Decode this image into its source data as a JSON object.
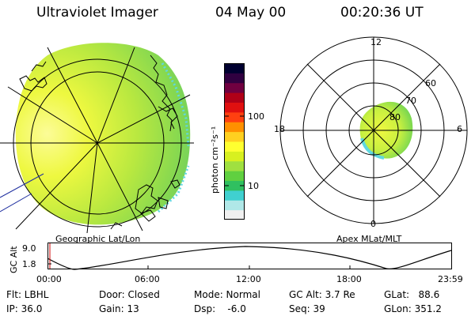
{
  "header": {
    "instrument": "Ultraviolet Imager",
    "date": "04 May 00",
    "time": "00:20:36 UT"
  },
  "geo_panel": {
    "label": "Geographic Lat/Lon"
  },
  "apex_panel": {
    "label": "Apex MLat/MLT",
    "mlt_labels": [
      "12",
      "18",
      "6",
      "0"
    ],
    "mlat_labels": [
      "60",
      "70",
      "80"
    ]
  },
  "colorbar": {
    "unit_label": "photon cm⁻²s⁻¹",
    "ticks": [
      "100",
      "10"
    ],
    "colors": [
      "#f0f0f0",
      "#b0e8e8",
      "#40d0d0",
      "#30c060",
      "#60d040",
      "#a0e040",
      "#d8f020",
      "#ffff30",
      "#ffd020",
      "#ff9000",
      "#ff4010",
      "#e01010",
      "#b00018",
      "#700040",
      "#300040",
      "#000030"
    ]
  },
  "altitude_track": {
    "axis_label": "GC Alt",
    "y_ticks": [
      "9.0",
      "1.8"
    ],
    "x_ticks": [
      "00:00",
      "06:00",
      "12:00",
      "18:00",
      "23:59"
    ]
  },
  "info": {
    "flt": "Flt: LBHL",
    "ip": "IP: 36.0",
    "door": "Door: Closed",
    "gain": "Gain: 13",
    "mode": "Mode: Normal",
    "dsp": "Dsp:    -6.0",
    "gc_alt": "GC Alt: 3.7 Re",
    "seq": "Seq: 39",
    "glat": "GLat:   88.6",
    "glon": "GLon: 351.2"
  },
  "colors": {
    "border": "#000000",
    "time_marker": "#cc0000",
    "coast": "#000000"
  }
}
